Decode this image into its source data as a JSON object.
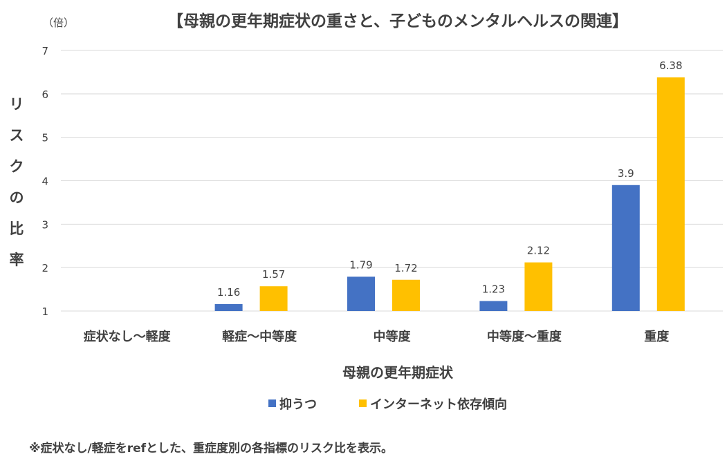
{
  "chart_data": {
    "type": "bar",
    "title": "【母親の更年期症状の重さと、子どものメンタルヘルスの関連】",
    "unit_label": "（倍）",
    "ylabel": "リスクの比率",
    "xlabel": "母親の更年期症状",
    "categories": [
      "症状なし〜軽度",
      "軽症〜中等度",
      "中等度",
      "中等度〜重度",
      "重度"
    ],
    "series": [
      {
        "name": "抑うつ",
        "color": "#4472C4",
        "values": [
          null,
          1.16,
          1.79,
          1.23,
          3.9
        ],
        "labels": [
          "",
          "1.16",
          "1.79",
          "1.23",
          "3.9"
        ]
      },
      {
        "name": "インターネット依存傾向",
        "color": "#FFC000",
        "values": [
          null,
          1.57,
          1.72,
          2.12,
          6.38
        ],
        "labels": [
          "",
          "1.57",
          "1.72",
          "2.12",
          "6.38"
        ]
      }
    ],
    "ylim": [
      1,
      7
    ],
    "yticks": [
      "1",
      "2",
      "3",
      "4",
      "5",
      "6",
      "7"
    ],
    "grid": true,
    "legend": "bottom",
    "footnote": "※症状なし/軽症をrefとした、重症度別の各指標のリスク比を表示。"
  }
}
